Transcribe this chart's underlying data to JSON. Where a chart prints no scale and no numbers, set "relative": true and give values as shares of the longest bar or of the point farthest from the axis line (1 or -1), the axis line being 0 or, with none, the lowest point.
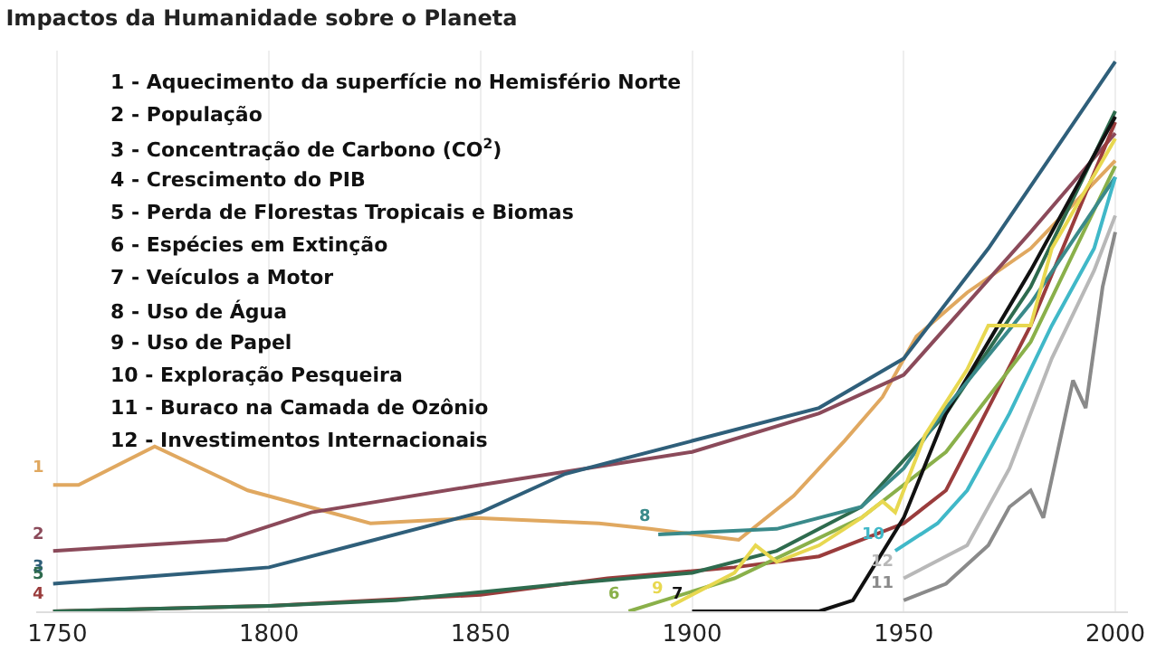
{
  "chart_data": {
    "type": "line",
    "title": "Impactos da Humanidade sobre o Planeta",
    "relative": true,
    "xlim": [
      1745,
      2003
    ],
    "xticks": [
      1750,
      1800,
      1850,
      1900,
      1950,
      2000
    ],
    "grid": "x",
    "legend": false,
    "marker": "none",
    "line_style": "solid",
    "annotations": [
      "1 - Aquecimento da superfície no Hemisfério Norte",
      "2 - População",
      "3 - Concentração de Carbono (CO$^{2}$)",
      "4 - Crescimento do PIB",
      "5 - Perda de Florestas Tropicais e Biomas",
      "6 - Espécies em Extinção",
      "7 - Veículos a Motor",
      "8 - Uso de Água",
      "9 - Uso de Papel",
      "10 - Exploração Pesqueira",
      "11 - Buraco na Camada de Ozônio",
      "12 - Investimentos Internacionais"
    ],
    "series": [
      {
        "name": "1",
        "color": "#e0a860",
        "x": [
          1749,
          1755,
          1773,
          1795,
          1824,
          1849,
          1878,
          1890,
          1911,
          1924,
          1936,
          1945,
          1953,
          1965,
          1980,
          2000
        ],
        "values": [
          0.23,
          0.23,
          0.3,
          0.22,
          0.16,
          0.17,
          0.16,
          0.15,
          0.13,
          0.21,
          0.31,
          0.39,
          0.5,
          0.58,
          0.66,
          0.82
        ]
      },
      {
        "name": "2",
        "color": "#8b4a5a",
        "x": [
          1749,
          1790,
          1810,
          1850,
          1900,
          1930,
          1950,
          1965,
          1980,
          2000
        ],
        "values": [
          0.11,
          0.13,
          0.18,
          0.23,
          0.29,
          0.36,
          0.43,
          0.56,
          0.69,
          0.87
        ]
      },
      {
        "name": "3",
        "color": "#2f5f7a",
        "x": [
          1749,
          1800,
          1820,
          1850,
          1870,
          1900,
          1930,
          1950,
          1970,
          2000
        ],
        "values": [
          0.05,
          0.08,
          0.12,
          0.18,
          0.25,
          0.31,
          0.37,
          0.46,
          0.66,
          1.0
        ]
      },
      {
        "name": "4",
        "color": "#9a3c3c",
        "x": [
          1749,
          1800,
          1850,
          1880,
          1910,
          1930,
          1950,
          1960,
          1980,
          2000
        ],
        "values": [
          0.0,
          0.01,
          0.03,
          0.06,
          0.08,
          0.1,
          0.16,
          0.22,
          0.52,
          0.89
        ]
      },
      {
        "name": "5",
        "color": "#2e6b4e",
        "x": [
          1749,
          1800,
          1830,
          1870,
          1900,
          1920,
          1940,
          1960,
          1980,
          2000
        ],
        "values": [
          0.0,
          0.01,
          0.02,
          0.05,
          0.07,
          0.11,
          0.19,
          0.36,
          0.59,
          0.91
        ]
      },
      {
        "name": "6",
        "color": "#8ab04a",
        "x": [
          1885,
          1910,
          1940,
          1960,
          1980,
          2000
        ],
        "values": [
          0.0,
          0.06,
          0.17,
          0.29,
          0.49,
          0.81
        ]
      },
      {
        "name": "7",
        "color": "#111111",
        "x": [
          1900,
          1930,
          1938,
          1950,
          1960,
          1980,
          2000
        ],
        "values": [
          0.0,
          0.0,
          0.02,
          0.17,
          0.36,
          0.62,
          0.9
        ]
      },
      {
        "name": "8",
        "color": "#3a8a8a",
        "x": [
          1892,
          1920,
          1940,
          1950,
          1960,
          1980,
          2000
        ],
        "values": [
          0.14,
          0.15,
          0.19,
          0.26,
          0.37,
          0.56,
          0.79
        ]
      },
      {
        "name": "9",
        "color": "#e8d850",
        "x": [
          1895,
          1910,
          1915,
          1920,
          1930,
          1940,
          1945,
          1948,
          1955,
          1965,
          1970,
          1980,
          1985,
          2000
        ],
        "values": [
          0.01,
          0.07,
          0.12,
          0.09,
          0.12,
          0.17,
          0.2,
          0.18,
          0.32,
          0.44,
          0.52,
          0.52,
          0.66,
          0.86
        ]
      },
      {
        "name": "10",
        "color": "#40b8c8",
        "x": [
          1948,
          1958,
          1965,
          1975,
          1985,
          1995,
          2000
        ],
        "values": [
          0.11,
          0.16,
          0.22,
          0.36,
          0.52,
          0.66,
          0.79
        ]
      },
      {
        "name": "11",
        "color": "#8a8a8a",
        "x": [
          1950,
          1960,
          1970,
          1975,
          1980,
          1983,
          1990,
          1993,
          1997,
          2000
        ],
        "values": [
          0.02,
          0.05,
          0.12,
          0.19,
          0.22,
          0.17,
          0.42,
          0.37,
          0.59,
          0.69
        ]
      },
      {
        "name": "12",
        "color": "#b8b8b8",
        "x": [
          1950,
          1965,
          1975,
          1985,
          1995,
          2000
        ],
        "values": [
          0.06,
          0.12,
          0.26,
          0.46,
          0.62,
          0.72
        ]
      }
    ]
  }
}
